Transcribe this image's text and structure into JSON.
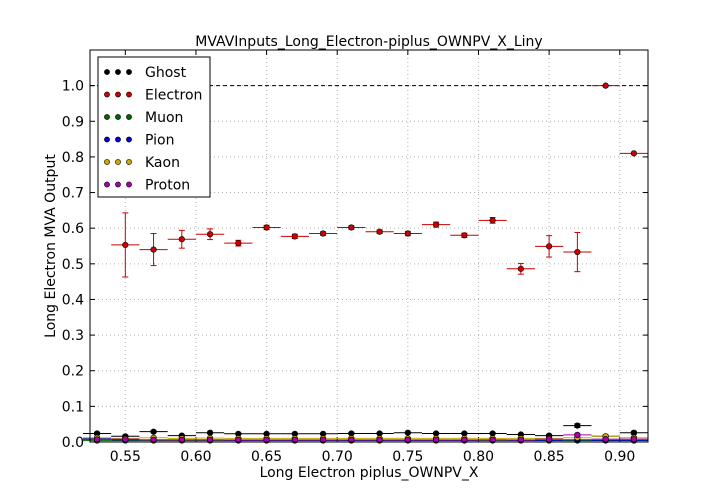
{
  "chart_data": {
    "type": "scatter",
    "title": "MVAVInputs_Long_Electron-piplus_OWNPV_X_Liny",
    "xlabel": "Long Electron piplus_OWNPV_X",
    "ylabel": "Long Electron MVA Output",
    "xlim": [
      0.525,
      0.92
    ],
    "ylim": [
      0.0,
      1.1
    ],
    "xticks": [
      "0.55",
      "0.60",
      "0.65",
      "0.70",
      "0.75",
      "0.80",
      "0.85",
      "0.90"
    ],
    "yticks": [
      "0.0",
      "0.1",
      "0.2",
      "0.3",
      "0.4",
      "0.5",
      "0.6",
      "0.7",
      "0.8",
      "0.9",
      "1.0"
    ],
    "grid": true,
    "legend_position": "top-left",
    "reference_line_y": 1.0,
    "series": [
      {
        "name": "Ghost",
        "color": "#000000",
        "x": [
          0.53,
          0.55,
          0.57,
          0.59,
          0.61,
          0.63,
          0.65,
          0.67,
          0.69,
          0.71,
          0.73,
          0.75,
          0.77,
          0.79,
          0.81,
          0.83,
          0.85,
          0.87,
          0.89,
          0.91
        ],
        "y": [
          0.024,
          0.016,
          0.029,
          0.018,
          0.026,
          0.023,
          0.023,
          0.023,
          0.023,
          0.024,
          0.024,
          0.026,
          0.024,
          0.024,
          0.024,
          0.021,
          0.018,
          0.046,
          0.016,
          0.026
        ],
        "xerr": 0.01,
        "yerr": [
          0.003,
          0.003,
          0.003,
          0.002,
          0.002,
          0.002,
          0.002,
          0.002,
          0.002,
          0.002,
          0.002,
          0.002,
          0.002,
          0.002,
          0.002,
          0.002,
          0.003,
          0.005,
          0.004,
          0.004
        ]
      },
      {
        "name": "Electron",
        "color": "#cc0000",
        "x": [
          0.55,
          0.57,
          0.59,
          0.61,
          0.63,
          0.65,
          0.67,
          0.69,
          0.71,
          0.73,
          0.75,
          0.77,
          0.79,
          0.81,
          0.83,
          0.85,
          0.87,
          0.89,
          0.91
        ],
        "y": [
          0.553,
          0.54,
          0.569,
          0.583,
          0.558,
          0.602,
          0.577,
          0.585,
          0.602,
          0.59,
          0.585,
          0.61,
          0.58,
          0.622,
          0.486,
          0.549,
          0.533,
          1.0,
          0.81
        ],
        "xerr": 0.01,
        "yerr": [
          0.09,
          0.045,
          0.025,
          0.015,
          0.008,
          0.006,
          0.006,
          0.005,
          0.005,
          0.005,
          0.006,
          0.007,
          0.006,
          0.008,
          0.015,
          0.03,
          0.055,
          0.0,
          0.0
        ]
      },
      {
        "name": "Muon",
        "color": "#006600",
        "x": [
          0.53,
          0.55,
          0.57,
          0.59,
          0.61,
          0.63,
          0.65,
          0.67,
          0.69,
          0.71,
          0.73,
          0.75,
          0.77,
          0.79,
          0.81,
          0.83,
          0.85,
          0.87,
          0.89,
          0.91
        ],
        "y": [
          0.004,
          0.004,
          0.004,
          0.004,
          0.004,
          0.004,
          0.004,
          0.004,
          0.004,
          0.004,
          0.004,
          0.004,
          0.004,
          0.004,
          0.004,
          0.004,
          0.004,
          0.004,
          0.004,
          0.004
        ],
        "xerr": 0.01,
        "yerr": [
          0.001,
          0.001,
          0.001,
          0.001,
          0.001,
          0.001,
          0.001,
          0.001,
          0.001,
          0.001,
          0.001,
          0.001,
          0.001,
          0.001,
          0.001,
          0.001,
          0.001,
          0.001,
          0.001,
          0.001
        ]
      },
      {
        "name": "Pion",
        "color": "#0000cc",
        "x": [
          0.53,
          0.55,
          0.57,
          0.59,
          0.61,
          0.63,
          0.65,
          0.67,
          0.69,
          0.71,
          0.73,
          0.75,
          0.77,
          0.79,
          0.81,
          0.83,
          0.85,
          0.87,
          0.89,
          0.91
        ],
        "y": [
          0.009,
          0.006,
          0.006,
          0.006,
          0.006,
          0.005,
          0.005,
          0.005,
          0.005,
          0.005,
          0.005,
          0.005,
          0.005,
          0.005,
          0.006,
          0.005,
          0.005,
          0.006,
          0.005,
          0.005
        ],
        "xerr": 0.01,
        "yerr": [
          0.001,
          0.001,
          0.001,
          0.001,
          0.001,
          0.001,
          0.001,
          0.001,
          0.001,
          0.001,
          0.001,
          0.001,
          0.001,
          0.001,
          0.001,
          0.001,
          0.001,
          0.001,
          0.001,
          0.001
        ]
      },
      {
        "name": "Kaon",
        "color": "#ccaa00",
        "x": [
          0.53,
          0.55,
          0.57,
          0.59,
          0.61,
          0.63,
          0.65,
          0.67,
          0.69,
          0.71,
          0.73,
          0.75,
          0.77,
          0.79,
          0.81,
          0.83,
          0.85,
          0.87,
          0.89,
          0.91
        ],
        "y": [
          0.012,
          0.01,
          0.012,
          0.01,
          0.011,
          0.01,
          0.01,
          0.01,
          0.01,
          0.01,
          0.01,
          0.01,
          0.01,
          0.01,
          0.01,
          0.01,
          0.01,
          0.012,
          0.016,
          0.012
        ],
        "xerr": 0.01,
        "yerr": [
          0.002,
          0.002,
          0.002,
          0.002,
          0.002,
          0.002,
          0.002,
          0.002,
          0.002,
          0.002,
          0.002,
          0.002,
          0.002,
          0.002,
          0.002,
          0.002,
          0.002,
          0.003,
          0.003,
          0.003
        ]
      },
      {
        "name": "Proton",
        "color": "#aa00aa",
        "x": [
          0.53,
          0.55,
          0.57,
          0.59,
          0.61,
          0.63,
          0.65,
          0.67,
          0.69,
          0.71,
          0.73,
          0.75,
          0.77,
          0.79,
          0.81,
          0.83,
          0.85,
          0.87,
          0.89,
          0.91
        ],
        "y": [
          0.007,
          0.008,
          0.006,
          0.006,
          0.006,
          0.006,
          0.006,
          0.006,
          0.006,
          0.006,
          0.006,
          0.006,
          0.006,
          0.006,
          0.006,
          0.006,
          0.008,
          0.02,
          0.008,
          0.008
        ],
        "xerr": 0.01,
        "yerr": [
          0.001,
          0.001,
          0.001,
          0.001,
          0.001,
          0.001,
          0.001,
          0.001,
          0.001,
          0.001,
          0.001,
          0.001,
          0.001,
          0.001,
          0.001,
          0.001,
          0.002,
          0.004,
          0.002,
          0.002
        ]
      }
    ]
  }
}
